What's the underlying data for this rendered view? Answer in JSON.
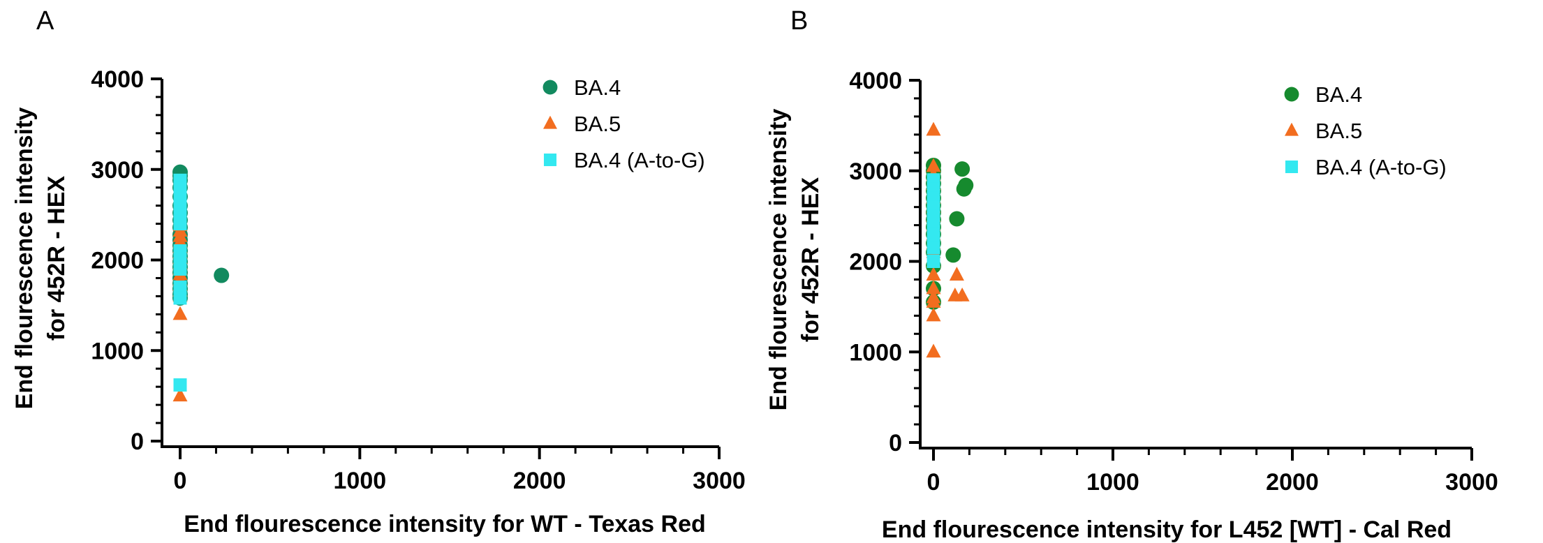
{
  "chart_data": [
    {
      "type": "scatter",
      "panel_label": "A",
      "xlabel": "End flourescence intensity for WT - Texas Red",
      "ylabel_lines": [
        "End flourescence intensity",
        "for 452R - HEX"
      ],
      "xlim": [
        -100,
        3000
      ],
      "ylim": [
        -50,
        4000
      ],
      "xticks": [
        0,
        1000,
        2000,
        3000
      ],
      "yticks": [
        0,
        1000,
        2000,
        3000,
        4000
      ],
      "grid": false,
      "legend_position": "top-right",
      "series": [
        {
          "name": "BA.4",
          "marker": "circle",
          "color": "#128a5f",
          "x": [
            0,
            0,
            0,
            0,
            0,
            0,
            0,
            0,
            0,
            0,
            0,
            0,
            0,
            0,
            0,
            0,
            0,
            0,
            0,
            0,
            0,
            0,
            230
          ],
          "y": [
            2970,
            2930,
            2880,
            2800,
            2700,
            2600,
            2520,
            2440,
            2360,
            2280,
            2220,
            2160,
            2100,
            2040,
            1980,
            1920,
            1860,
            1800,
            1740,
            1680,
            1620,
            1580,
            1830
          ]
        },
        {
          "name": "BA.5",
          "marker": "triangle",
          "color": "#f26d1f",
          "x": [
            0,
            0,
            0,
            0,
            0,
            0,
            0,
            0,
            0,
            0,
            0,
            0,
            0,
            0,
            0,
            0
          ],
          "y": [
            2380,
            2320,
            2260,
            2200,
            2140,
            2080,
            2020,
            1960,
            1900,
            1840,
            1780,
            1720,
            1660,
            1600,
            1400,
            500
          ]
        },
        {
          "name": "BA.4 (A-to-G)",
          "marker": "square",
          "color": "#33e8f0",
          "x": [
            0,
            0,
            0,
            0,
            0,
            0,
            0,
            0,
            0,
            0,
            0,
            0
          ],
          "y": [
            2880,
            2800,
            2700,
            2600,
            2500,
            2400,
            2100,
            2000,
            1900,
            1700,
            1580,
            620
          ]
        }
      ]
    },
    {
      "type": "scatter",
      "panel_label": "B",
      "xlabel": "End flourescence intensity for L452 [WT] - Cal Red",
      "ylabel_lines": [
        "End flourescence intensity",
        "for 452R - HEX"
      ],
      "xlim": [
        -100,
        3000
      ],
      "ylim": [
        -50,
        4000
      ],
      "xticks": [
        0,
        1000,
        2000,
        3000
      ],
      "yticks": [
        0,
        1000,
        2000,
        3000,
        4000
      ],
      "grid": false,
      "legend_position": "top-right",
      "series": [
        {
          "name": "BA.4",
          "marker": "circle",
          "color": "#168a2e",
          "x": [
            0,
            0,
            0,
            0,
            0,
            0,
            0,
            0,
            0,
            0,
            0,
            0,
            0,
            0,
            0,
            0,
            160,
            170,
            180,
            130,
            110
          ],
          "y": [
            3060,
            3000,
            2930,
            2860,
            2780,
            2700,
            2620,
            2540,
            2460,
            2380,
            2300,
            2200,
            2100,
            1950,
            1700,
            1550,
            3020,
            2800,
            2840,
            2470,
            2070
          ]
        },
        {
          "name": "BA.5",
          "marker": "triangle",
          "color": "#f26d1f",
          "x": [
            0,
            0,
            0,
            0,
            0,
            0,
            0,
            0,
            0,
            0,
            0,
            0,
            0,
            0,
            0,
            0,
            0,
            0,
            130,
            120,
            160
          ],
          "y": [
            3450,
            3050,
            2950,
            2850,
            2700,
            2600,
            2500,
            2400,
            2300,
            2200,
            2100,
            2000,
            1850,
            1700,
            1600,
            1400,
            1000,
            1550,
            1850,
            1620,
            1620
          ]
        },
        {
          "name": "BA.4 (A-to-G)",
          "marker": "square",
          "color": "#33e8f0",
          "x": [
            0,
            0,
            0,
            0,
            0,
            0,
            0,
            0,
            0,
            0,
            0,
            0
          ],
          "y": [
            2900,
            2800,
            2700,
            2600,
            2500,
            2450,
            2400,
            2350,
            2300,
            2250,
            2150,
            2000
          ]
        }
      ]
    }
  ]
}
